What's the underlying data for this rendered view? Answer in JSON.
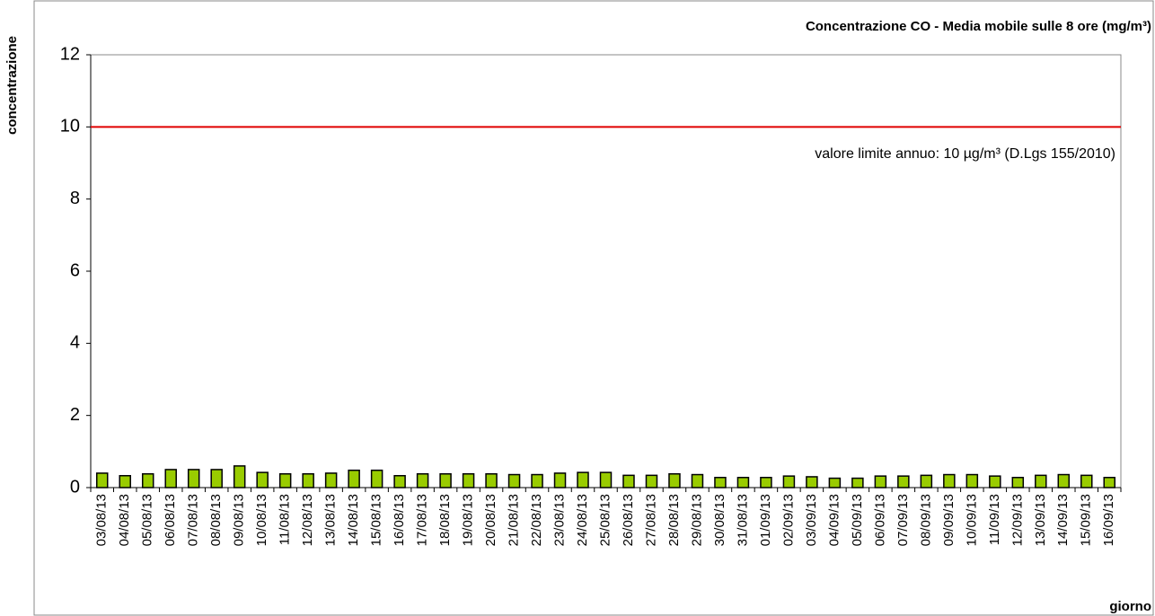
{
  "chart_data": {
    "type": "bar",
    "title": "Concentrazione CO - Media mobile sulle 8 ore (mg/m³)",
    "y_label": "concentrazione",
    "x_label": "giorno",
    "categories": [
      "03/08/13",
      "04/08/13",
      "05/08/13",
      "06/08/13",
      "07/08/13",
      "08/08/13",
      "09/08/13",
      "10/08/13",
      "11/08/13",
      "12/08/13",
      "13/08/13",
      "14/08/13",
      "15/08/13",
      "16/08/13",
      "17/08/13",
      "18/08/13",
      "19/08/13",
      "20/08/13",
      "21/08/13",
      "22/08/13",
      "23/08/13",
      "24/08/13",
      "25/08/13",
      "26/08/13",
      "27/08/13",
      "28/08/13",
      "29/08/13",
      "30/08/13",
      "31/08/13",
      "01/09/13",
      "02/09/13",
      "03/09/13",
      "04/09/13",
      "05/09/13",
      "06/09/13",
      "07/09/13",
      "08/09/13",
      "09/09/13",
      "10/09/13",
      "11/09/13",
      "12/09/13",
      "13/09/13",
      "14/09/13",
      "15/09/13",
      "16/09/13"
    ],
    "values": [
      0.4,
      0.33,
      0.38,
      0.5,
      0.5,
      0.5,
      0.6,
      0.42,
      0.38,
      0.38,
      0.4,
      0.48,
      0.48,
      0.33,
      0.38,
      0.38,
      0.38,
      0.38,
      0.36,
      0.36,
      0.4,
      0.42,
      0.42,
      0.34,
      0.34,
      0.38,
      0.36,
      0.28,
      0.28,
      0.28,
      0.32,
      0.3,
      0.26,
      0.26,
      0.32,
      0.32,
      0.34,
      0.36,
      0.36,
      0.32,
      0.28,
      0.34,
      0.36,
      0.34,
      0.28
    ],
    "color": "#99cc00",
    "ylim": [
      0,
      12
    ],
    "yticks": [
      0,
      2,
      4,
      6,
      8,
      10,
      12
    ],
    "reference_line": {
      "value": 10,
      "label": "valore limite annuo: 10 µg/m³ (D.Lgs 155/2010)",
      "color": "#e00000"
    }
  }
}
